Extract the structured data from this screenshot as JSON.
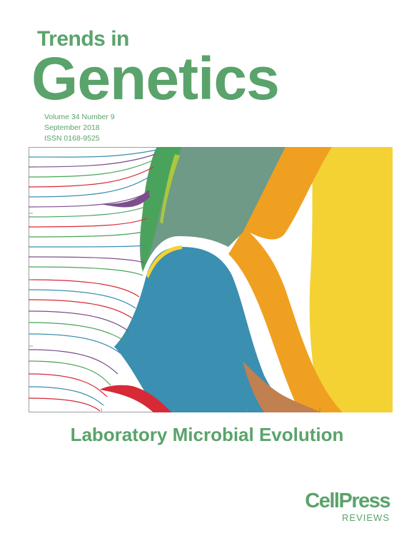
{
  "journal": {
    "line1": "Trends in",
    "line2": "Genetics"
  },
  "issue": {
    "volume": "Volume 34 Number 9",
    "date": "September 2018",
    "issn": "ISSN 0168-9525"
  },
  "cover_title": "Laboratory Microbial Evolution",
  "publisher": {
    "name": "CellPress",
    "sub": "REVIEWS"
  },
  "colors": {
    "brand": "#5aa36b",
    "lineage_palette": [
      "#3b8fb0",
      "#4aa35a",
      "#6e9a87",
      "#f0a020",
      "#f4d234",
      "#d62a36",
      "#7c4f8c",
      "#a8c83e",
      "#c08050"
    ]
  }
}
